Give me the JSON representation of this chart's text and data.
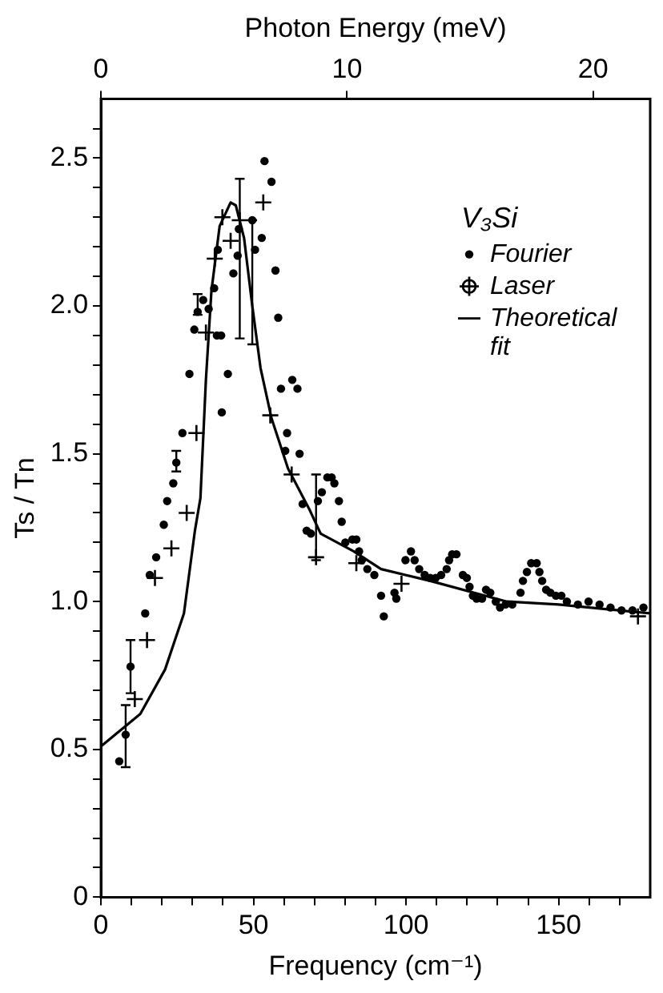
{
  "chart_data": {
    "type": "scatter",
    "xlabel": "Frequency (cm⁻¹)",
    "ylabel": "Ts / Tn",
    "x2label": "Photon Energy (meV)",
    "legend_title": "V₃Si",
    "legend": "top right",
    "grid": false,
    "xlim": [
      0,
      180
    ],
    "xticks": [
      0,
      {
        "value": 10,
        "label": null
      },
      {
        "value": 20,
        "label": null
      },
      {
        "value": 30,
        "label": null
      },
      {
        "value": 40,
        "label": null
      },
      50,
      {
        "value": 60,
        "label": null
      },
      {
        "value": 70,
        "label": null
      },
      {
        "value": 80,
        "label": null
      },
      {
        "value": 90,
        "label": null
      },
      100,
      {
        "value": 110,
        "label": null
      },
      {
        "value": 120,
        "label": null
      },
      {
        "value": 130,
        "label": null
      },
      {
        "value": 140,
        "label": null
      },
      150,
      {
        "value": 160,
        "label": null
      },
      {
        "value": 170,
        "label": null
      }
    ],
    "x2lim": [
      0,
      22.32
    ],
    "x2ticks": [
      0,
      10,
      20
    ],
    "ylim": [
      0,
      2.7
    ],
    "yticks": [
      0,
      {
        "value": 0.1,
        "label": null
      },
      {
        "value": 0.2,
        "label": null
      },
      {
        "value": 0.3,
        "label": null
      },
      {
        "value": 0.4,
        "label": null
      },
      0.5,
      {
        "value": 0.6,
        "label": null
      },
      {
        "value": 0.7,
        "label": null
      },
      {
        "value": 0.8,
        "label": null
      },
      {
        "value": 0.9,
        "label": null
      },
      {
        "value": 1,
        "label": "1.0"
      },
      {
        "value": 1.1,
        "label": null
      },
      {
        "value": 1.2,
        "label": null
      },
      {
        "value": 1.3,
        "label": null
      },
      {
        "value": 1.4,
        "label": null
      },
      1.5,
      {
        "value": 1.6,
        "label": null
      },
      {
        "value": 1.7,
        "label": null
      },
      {
        "value": 1.8,
        "label": null
      },
      {
        "value": 1.9,
        "label": null
      },
      {
        "value": 2,
        "label": "2.0"
      },
      {
        "value": 2.1,
        "label": null
      },
      {
        "value": 2.2,
        "label": null
      },
      {
        "value": 2.3,
        "label": null
      },
      {
        "value": 2.4,
        "label": null
      },
      2.5,
      {
        "value": 2.6,
        "label": null
      }
    ],
    "series": [
      {
        "name": "Fourier",
        "marker": "circle",
        "color": "#000000",
        "x": [
          6.0,
          8.1,
          9.7,
          14.5,
          16.0,
          18.1,
          20.6,
          21.7,
          23.7,
          24.7,
          26.7,
          29.0,
          30.6,
          31.7,
          33.5,
          35.3,
          37.1,
          38.0,
          38.3,
          39.4,
          39.6,
          41.6,
          43.4,
          44.8,
          45.2,
          49.6,
          50.5,
          52.7,
          53.6,
          55.9,
          57.2,
          58.1,
          59.0,
          60.4,
          61.0,
          62.7,
          64.4,
          65.1,
          66.1,
          67.4,
          68.8,
          71.1,
          72.4,
          74.2,
          75.6,
          76.5,
          78.0,
          78.9,
          80.1,
          82.4,
          83.7,
          84.6,
          85.5,
          87.3,
          89.6,
          91.8,
          92.7,
          96.2,
          96.8,
          99.8,
          101.6,
          102.8,
          104.3,
          106.1,
          107.9,
          109.7,
          111.5,
          113.3,
          114.1,
          115.1,
          116.5,
          118.6,
          119.9,
          120.8,
          121.9,
          123.1,
          124.9,
          126.2,
          127.6,
          129.4,
          130.8,
          132.6,
          134.8,
          137.5,
          138.3,
          139.6,
          141.0,
          142.8,
          143.7,
          144.6,
          145.9,
          147.3,
          149.1,
          150.9,
          152.7,
          156.3,
          159.8,
          163.4,
          167.0,
          170.6,
          174.2,
          177.8
        ],
        "values": [
          0.46,
          0.55,
          0.78,
          0.96,
          1.09,
          1.15,
          1.26,
          1.34,
          1.4,
          1.47,
          1.57,
          1.77,
          1.92,
          1.98,
          2.02,
          1.99,
          2.06,
          1.9,
          2.19,
          1.9,
          1.64,
          1.77,
          2.11,
          2.17,
          2.26,
          2.29,
          2.19,
          2.23,
          2.49,
          2.42,
          2.12,
          1.96,
          1.72,
          1.51,
          1.57,
          1.75,
          1.72,
          1.5,
          1.33,
          1.24,
          1.23,
          1.34,
          1.37,
          1.42,
          1.42,
          1.4,
          1.34,
          1.27,
          1.2,
          1.21,
          1.21,
          1.17,
          1.14,
          1.11,
          1.09,
          1.02,
          0.95,
          1.03,
          1.01,
          1.14,
          1.17,
          1.14,
          1.11,
          1.09,
          1.08,
          1.08,
          1.09,
          1.11,
          1.14,
          1.16,
          1.16,
          1.09,
          1.08,
          1.05,
          1.02,
          1.01,
          1.01,
          1.04,
          1.03,
          1.0,
          0.98,
          0.99,
          0.99,
          1.03,
          1.07,
          1.1,
          1.13,
          1.13,
          1.1,
          1.07,
          1.04,
          1.03,
          1.02,
          1.02,
          1.0,
          0.99,
          1.0,
          0.99,
          0.98,
          0.97,
          0.97,
          0.98
        ],
        "errors": [
          null,
          [
            0.44,
            0.65
          ],
          [
            0.69,
            0.87
          ],
          null,
          null,
          null,
          null,
          null,
          null,
          [
            1.44,
            1.51
          ],
          null,
          null,
          null,
          [
            1.97,
            2.04
          ],
          null,
          null,
          null,
          null,
          null,
          null,
          null,
          null,
          null,
          null,
          null,
          [
            1.87,
            2.29
          ],
          null,
          null,
          null,
          null,
          null,
          null,
          null,
          null,
          null,
          null,
          null,
          null,
          null,
          null,
          null,
          null,
          null,
          null,
          null,
          null,
          null,
          null,
          null,
          null,
          null,
          null,
          null,
          null,
          null,
          null,
          null,
          null,
          null,
          null,
          null,
          null,
          null,
          null,
          null,
          null,
          null,
          null,
          null,
          null,
          null,
          null,
          null,
          null,
          null,
          null,
          null,
          null,
          null,
          null,
          null,
          null,
          null,
          null,
          null,
          null,
          null,
          null,
          null,
          null,
          null,
          null,
          null,
          null,
          null,
          null,
          null,
          null,
          null,
          null,
          null,
          null
        ]
      },
      {
        "name": "Laser",
        "marker": "cross",
        "color": "#000000",
        "x": [
          11.1,
          15.1,
          17.7,
          23.1,
          28.1,
          31.3,
          34.4,
          37.3,
          39.8,
          42.5,
          45.5,
          53.2,
          55.5,
          62.5,
          70.5,
          83.7,
          98.5,
          176
        ],
        "values": [
          0.67,
          0.87,
          1.08,
          1.18,
          1.3,
          1.57,
          1.91,
          2.16,
          2.3,
          2.22,
          2.29,
          2.35,
          1.63,
          1.43,
          1.15,
          1.13,
          1.06,
          0.95
        ],
        "errors": [
          null,
          null,
          null,
          null,
          null,
          null,
          null,
          null,
          null,
          null,
          [
            1.89,
            2.43
          ],
          null,
          null,
          null,
          [
            1.14,
            1.43
          ],
          null,
          null,
          null
        ]
      },
      {
        "name": "Theoretical fit",
        "type": "line",
        "marker": "none",
        "line_style": "solid",
        "color": "#000000",
        "x": [
          0,
          12.9,
          21,
          27.2,
          30.8,
          32.6,
          34.4,
          36.2,
          38.9,
          42.5,
          44.2,
          46.9,
          49.6,
          52.3,
          55.9,
          61.3,
          68.4,
          72,
          82.8,
          91.8,
          107.9,
          133,
          150,
          180
        ],
        "values": [
          0.51,
          0.62,
          0.77,
          0.96,
          1.24,
          1.35,
          1.75,
          2.05,
          2.27,
          2.35,
          2.34,
          2.23,
          2.0,
          1.79,
          1.62,
          1.45,
          1.31,
          1.23,
          1.17,
          1.11,
          1.07,
          1.0,
          0.99,
          0.96
        ]
      }
    ]
  }
}
